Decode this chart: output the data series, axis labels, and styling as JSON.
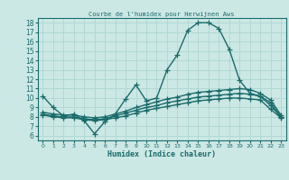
{
  "title": "Courbe de l'humidex pour Herwijnen Aws",
  "xlabel": "Humidex (Indice chaleur)",
  "bg_color": "#cce8e4",
  "grid_color": "#b0d8d4",
  "line_color": "#1a6b6b",
  "xlim": [
    -0.5,
    23.5
  ],
  "ylim": [
    5.5,
    18.5
  ],
  "xticks": [
    0,
    1,
    2,
    3,
    4,
    5,
    6,
    7,
    8,
    9,
    10,
    11,
    12,
    13,
    14,
    15,
    16,
    17,
    18,
    19,
    20,
    21,
    22,
    23
  ],
  "yticks": [
    6,
    7,
    8,
    9,
    10,
    11,
    12,
    13,
    14,
    15,
    16,
    17,
    18
  ],
  "lines": [
    {
      "x": [
        0,
        1,
        2,
        3,
        4,
        5,
        6,
        7,
        8,
        9,
        10,
        11,
        12,
        13,
        14,
        15,
        16,
        17,
        18,
        19,
        20,
        21,
        22,
        23
      ],
      "y": [
        10.2,
        9.0,
        8.1,
        8.3,
        7.6,
        6.2,
        7.5,
        8.3,
        9.9,
        11.4,
        9.7,
        10.0,
        13.0,
        14.6,
        17.2,
        18.0,
        18.0,
        17.4,
        15.2,
        11.9,
        10.5,
        10.2,
        9.5,
        8.0
      ]
    },
    {
      "x": [
        0,
        1,
        2,
        3,
        4,
        5,
        6,
        7,
        8,
        9,
        10,
        11,
        12,
        13,
        14,
        15,
        16,
        17,
        18,
        19,
        20,
        21,
        22,
        23
      ],
      "y": [
        8.5,
        8.3,
        8.2,
        8.2,
        8.0,
        7.9,
        8.0,
        8.3,
        8.6,
        9.0,
        9.3,
        9.6,
        9.9,
        10.1,
        10.4,
        10.6,
        10.7,
        10.8,
        10.9,
        11.0,
        10.9,
        10.5,
        9.8,
        8.2
      ]
    },
    {
      "x": [
        0,
        1,
        2,
        3,
        4,
        5,
        6,
        7,
        8,
        9,
        10,
        11,
        12,
        13,
        14,
        15,
        16,
        17,
        18,
        19,
        20,
        21,
        22,
        23
      ],
      "y": [
        8.3,
        8.1,
        8.0,
        8.0,
        7.8,
        7.7,
        7.8,
        8.1,
        8.4,
        8.7,
        9.0,
        9.2,
        9.5,
        9.7,
        9.9,
        10.1,
        10.2,
        10.3,
        10.4,
        10.5,
        10.4,
        10.2,
        9.2,
        8.0
      ]
    },
    {
      "x": [
        0,
        1,
        2,
        3,
        4,
        5,
        6,
        7,
        8,
        9,
        10,
        11,
        12,
        13,
        14,
        15,
        16,
        17,
        18,
        19,
        20,
        21,
        22,
        23
      ],
      "y": [
        8.2,
        8.0,
        7.9,
        7.9,
        7.7,
        7.6,
        7.7,
        7.9,
        8.1,
        8.4,
        8.7,
        8.9,
        9.1,
        9.3,
        9.5,
        9.7,
        9.8,
        9.9,
        10.0,
        10.0,
        9.9,
        9.8,
        8.8,
        7.9
      ]
    }
  ],
  "marker": "+",
  "markersize": 4,
  "linewidth": 1.0
}
